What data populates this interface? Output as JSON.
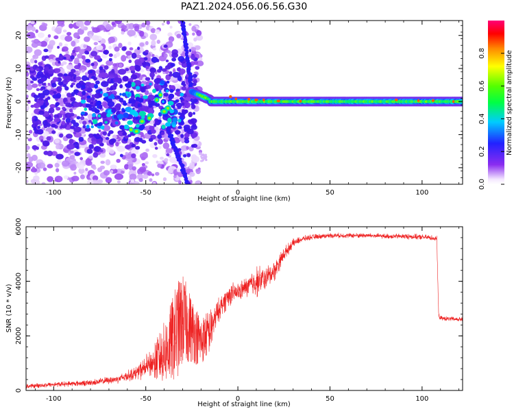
{
  "title": "PAZ1.2024.056.06.56.G30",
  "chart_data": [
    {
      "type": "heatmap",
      "xlabel": "Height of straight line (km)",
      "ylabel": "Frequency (Hz)",
      "xlim": [
        -115,
        122
      ],
      "ylim": [
        -25,
        24.5
      ],
      "xticks": [
        -100,
        -50,
        0,
        50,
        100
      ],
      "yticks": [
        -20,
        -10,
        0,
        10,
        20
      ],
      "colorbar": {
        "label": "Normalized spectral amplitude",
        "range": [
          0,
          1
        ],
        "ticks": [
          "0.0",
          "0.2",
          "0.4",
          "0.6",
          "0.8"
        ]
      },
      "features": [
        {
          "name": "scattered noise",
          "x_range": [
            -115,
            -20
          ],
          "freq_range": [
            -25,
            24.5
          ]
        },
        {
          "name": "descending trace",
          "x_start": -30,
          "x_end": -25,
          "freq_start": 24.5,
          "freq_end": 3
        },
        {
          "name": "rising trace",
          "x_start": -38,
          "x_end": -27,
          "freq_start": -8,
          "freq_end": -25
        },
        {
          "name": "carrier line",
          "x_start": -25,
          "x_end": 122,
          "freq": 0
        }
      ]
    },
    {
      "type": "line",
      "xlabel": "Height of straight line (km)",
      "ylabel": "SNR (10 * v/v)",
      "xlim": [
        -115,
        122
      ],
      "ylim": [
        0,
        6000
      ],
      "xticks": [
        -100,
        -50,
        0,
        50,
        100
      ],
      "yticks": [
        0,
        2000,
        4000,
        6000
      ],
      "color": "#ee2222",
      "series": [
        {
          "x": [
            -115,
            -100,
            -80,
            -65,
            -55,
            -45,
            -38,
            -33,
            -30,
            -26,
            -20,
            -15,
            -10,
            -5,
            0,
            5,
            10,
            15,
            20,
            25,
            30,
            35,
            40,
            45,
            50,
            60,
            70,
            80,
            90,
            100,
            105,
            108,
            109,
            110,
            115,
            122
          ],
          "y": [
            150,
            220,
            280,
            420,
            650,
            1050,
            1550,
            2200,
            2600,
            2300,
            1800,
            2200,
            3000,
            3500,
            3600,
            3800,
            4000,
            4100,
            4400,
            5000,
            5400,
            5550,
            5620,
            5650,
            5680,
            5680,
            5680,
            5650,
            5650,
            5620,
            5600,
            5550,
            2750,
            2650,
            2620,
            2600
          ],
          "spread": [
            100,
            110,
            130,
            180,
            300,
            700,
            1300,
            1800,
            1700,
            1300,
            900,
            800,
            500,
            500,
            400,
            450,
            700,
            500,
            450,
            300,
            180,
            130,
            120,
            110,
            110,
            110,
            110,
            110,
            120,
            120,
            120,
            120,
            110,
            100,
            100,
            100
          ]
        }
      ]
    }
  ]
}
